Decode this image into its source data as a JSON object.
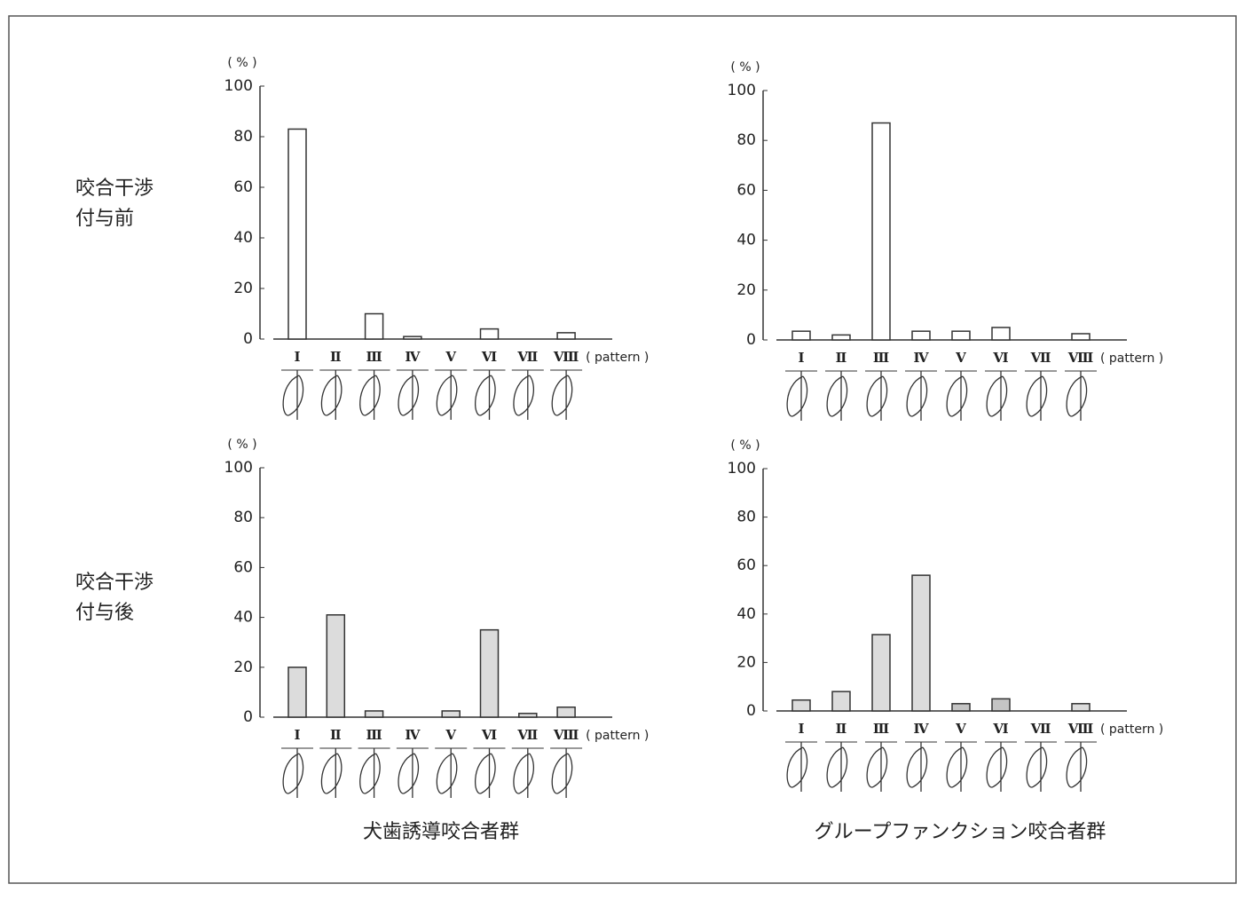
{
  "row_labels": [
    [
      "咬合干渉",
      "付与前"
    ],
    [
      "咬合干渉",
      "付与後"
    ]
  ],
  "column_labels": [
    "犬歯誘導咬合者群",
    "グループファンクション咬合者群"
  ],
  "chart_data": [
    {
      "type": "bar",
      "y_label": "( % )",
      "x_label": "( pattern )",
      "categories": [
        "Ⅰ",
        "Ⅱ",
        "Ⅲ",
        "Ⅳ",
        "Ⅴ",
        "Ⅵ",
        "Ⅶ",
        "Ⅷ"
      ],
      "values": [
        83,
        0,
        10,
        1,
        0,
        4,
        0,
        2.5
      ],
      "colors": [
        "#ffffff",
        "#ffffff",
        "#ffffff",
        "#ffffff",
        "#ffffff",
        "#ffffff",
        "#ffffff",
        "#ffffff"
      ],
      "ylim": [
        0,
        100
      ],
      "yticks": [
        0,
        20,
        40,
        60,
        80,
        100
      ]
    },
    {
      "type": "bar",
      "y_label": "( % )",
      "x_label": "( pattern )",
      "categories": [
        "Ⅰ",
        "Ⅱ",
        "Ⅲ",
        "Ⅳ",
        "Ⅴ",
        "Ⅵ",
        "Ⅶ",
        "Ⅷ"
      ],
      "values": [
        3.5,
        2,
        87,
        3.5,
        3.5,
        5,
        0,
        2.5
      ],
      "colors": [
        "#ffffff",
        "#ffffff",
        "#ffffff",
        "#ffffff",
        "#ffffff",
        "#ffffff",
        "#ffffff",
        "#ffffff"
      ],
      "ylim": [
        0,
        100
      ],
      "yticks": [
        0,
        20,
        40,
        60,
        80,
        100
      ]
    },
    {
      "type": "bar",
      "y_label": "( % )",
      "x_label": "( pattern )",
      "categories": [
        "Ⅰ",
        "Ⅱ",
        "Ⅲ",
        "Ⅳ",
        "Ⅴ",
        "Ⅵ",
        "Ⅶ",
        "Ⅷ"
      ],
      "values": [
        20,
        41,
        2.5,
        0,
        2.5,
        35,
        1.5,
        4
      ],
      "colors": [
        "#dcdcdc",
        "#dcdcdc",
        "#dcdcdc",
        "#dcdcdc",
        "#dcdcdc",
        "#dcdcdc",
        "#dcdcdc",
        "#dcdcdc"
      ],
      "ylim": [
        0,
        100
      ],
      "yticks": [
        0,
        20,
        40,
        60,
        80,
        100
      ]
    },
    {
      "type": "bar",
      "y_label": "( % )",
      "x_label": "( pattern )",
      "categories": [
        "Ⅰ",
        "Ⅱ",
        "Ⅲ",
        "Ⅳ",
        "Ⅴ",
        "Ⅵ",
        "Ⅶ",
        "Ⅷ"
      ],
      "values": [
        4.5,
        8,
        31.5,
        56,
        3,
        5,
        0,
        3
      ],
      "colors": [
        "#dcdcdc",
        "#dcdcdc",
        "#dcdcdc",
        "#dcdcdc",
        "#c4c4c4",
        "#c4c4c4",
        "#dcdcdc",
        "#dcdcdc"
      ],
      "ylim": [
        0,
        100
      ],
      "yticks": [
        0,
        20,
        40,
        60,
        80,
        100
      ]
    }
  ]
}
